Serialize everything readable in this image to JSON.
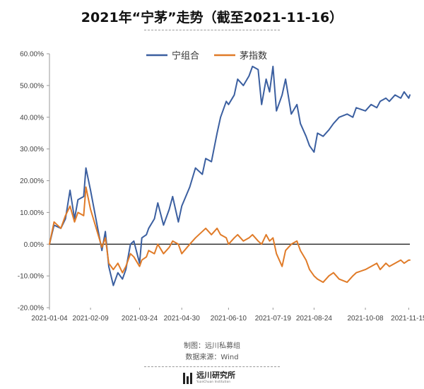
{
  "header": {
    "title": "2021年“宁茅”走势（截至2021-11-16）"
  },
  "footer": {
    "credit": "制图：远川私募组",
    "source": "数据来源：Wind",
    "logo_text": "远川研究所",
    "logo_subtext": "YuanChuan Institution"
  },
  "chart_data": {
    "type": "line",
    "title": "2021年“宁茅”走势（截至2021-11-16）",
    "xlabel": "",
    "ylabel": "",
    "ylim": [
      -20,
      60
    ],
    "yticks": [
      -20,
      -10,
      0,
      10,
      20,
      30,
      40,
      50,
      60
    ],
    "ytick_labels": [
      "-20.00%",
      "-10.00%",
      "0.00%",
      "10.00%",
      "20.00%",
      "30.00%",
      "40.00%",
      "50.00%",
      "60.00%"
    ],
    "xticks": [
      "2021-01-04",
      "2021-02-09",
      "2021-03-24",
      "2021-04-30",
      "2021-06-10",
      "2021-07-19",
      "2021-08-24",
      "2021-10-08",
      "2021-11-15"
    ],
    "x_range": [
      "2021-01-04",
      "2021-11-16"
    ],
    "grid": false,
    "legend": "top-center",
    "series": [
      {
        "name": "宁组合",
        "color": "#3b5fa0",
        "x": [
          "2021-01-04",
          "2021-01-08",
          "2021-01-14",
          "2021-01-18",
          "2021-01-22",
          "2021-01-26",
          "2021-01-29",
          "2021-02-03",
          "2021-02-05",
          "2021-02-09",
          "2021-02-19",
          "2021-02-22",
          "2021-02-25",
          "2021-03-01",
          "2021-03-05",
          "2021-03-09",
          "2021-03-12",
          "2021-03-16",
          "2021-03-19",
          "2021-03-24",
          "2021-03-26",
          "2021-03-30",
          "2021-04-01",
          "2021-04-06",
          "2021-04-09",
          "2021-04-14",
          "2021-04-19",
          "2021-04-22",
          "2021-04-27",
          "2021-04-30",
          "2021-05-07",
          "2021-05-12",
          "2021-05-18",
          "2021-05-21",
          "2021-05-26",
          "2021-05-31",
          "2021-06-03",
          "2021-06-08",
          "2021-06-10",
          "2021-06-15",
          "2021-06-18",
          "2021-06-23",
          "2021-06-28",
          "2021-07-01",
          "2021-07-06",
          "2021-07-09",
          "2021-07-13",
          "2021-07-16",
          "2021-07-19",
          "2021-07-22",
          "2021-07-27",
          "2021-07-30",
          "2021-08-04",
          "2021-08-09",
          "2021-08-12",
          "2021-08-17",
          "2021-08-20",
          "2021-08-24",
          "2021-08-27",
          "2021-09-01",
          "2021-09-06",
          "2021-09-10",
          "2021-09-15",
          "2021-09-22",
          "2021-09-27",
          "2021-09-30",
          "2021-10-08",
          "2021-10-13",
          "2021-10-18",
          "2021-10-21",
          "2021-10-26",
          "2021-10-29",
          "2021-11-03",
          "2021-11-08",
          "2021-11-11",
          "2021-11-15",
          "2021-11-16"
        ],
        "values": [
          0,
          6,
          5,
          8,
          17,
          8,
          14,
          15,
          24,
          17,
          -2,
          4,
          -7,
          -13,
          -9,
          -11,
          -8,
          0,
          1,
          -6,
          2,
          3,
          5,
          8,
          13,
          6,
          11,
          15,
          7,
          12,
          18,
          24,
          22,
          27,
          26,
          35,
          40,
          45,
          44,
          47,
          52,
          50,
          53,
          56,
          55,
          44,
          52,
          48,
          56,
          42,
          47,
          52,
          41,
          44,
          38,
          34,
          31,
          29,
          35,
          34,
          36,
          38,
          40,
          41,
          40,
          43,
          42,
          44,
          43,
          45,
          46,
          45,
          47,
          46,
          48,
          46,
          47
        ]
      },
      {
        "name": "茅指数",
        "color": "#e07b28",
        "x": [
          "2021-01-04",
          "2021-01-08",
          "2021-01-14",
          "2021-01-18",
          "2021-01-22",
          "2021-01-26",
          "2021-01-29",
          "2021-02-03",
          "2021-02-05",
          "2021-02-09",
          "2021-02-19",
          "2021-02-22",
          "2021-02-25",
          "2021-03-01",
          "2021-03-05",
          "2021-03-09",
          "2021-03-12",
          "2021-03-16",
          "2021-03-19",
          "2021-03-24",
          "2021-03-26",
          "2021-03-30",
          "2021-04-01",
          "2021-04-06",
          "2021-04-09",
          "2021-04-14",
          "2021-04-19",
          "2021-04-22",
          "2021-04-27",
          "2021-04-30",
          "2021-05-07",
          "2021-05-12",
          "2021-05-18",
          "2021-05-21",
          "2021-05-26",
          "2021-05-31",
          "2021-06-03",
          "2021-06-08",
          "2021-06-10",
          "2021-06-15",
          "2021-06-18",
          "2021-06-23",
          "2021-06-28",
          "2021-07-01",
          "2021-07-06",
          "2021-07-09",
          "2021-07-13",
          "2021-07-16",
          "2021-07-19",
          "2021-07-22",
          "2021-07-27",
          "2021-07-30",
          "2021-08-04",
          "2021-08-09",
          "2021-08-12",
          "2021-08-17",
          "2021-08-20",
          "2021-08-24",
          "2021-08-27",
          "2021-09-01",
          "2021-09-06",
          "2021-09-10",
          "2021-09-15",
          "2021-09-22",
          "2021-09-27",
          "2021-09-30",
          "2021-10-08",
          "2021-10-13",
          "2021-10-18",
          "2021-10-21",
          "2021-10-26",
          "2021-10-29",
          "2021-11-03",
          "2021-11-08",
          "2021-11-11",
          "2021-11-15",
          "2021-11-16"
        ],
        "values": [
          0,
          7,
          5,
          9,
          12,
          7,
          10,
          9,
          18,
          11,
          -1,
          2,
          -6,
          -8,
          -6,
          -9,
          -7,
          -3,
          -4,
          -7,
          -5,
          -4,
          -2,
          -3,
          0,
          -3,
          -1,
          1,
          0,
          -3,
          0,
          2,
          4,
          5,
          3,
          5,
          3,
          2,
          0,
          2,
          3,
          1,
          2,
          3,
          1,
          0,
          3,
          1,
          2,
          -3,
          -7,
          -2,
          0,
          1,
          -2,
          -5,
          -8,
          -10,
          -11,
          -12,
          -10,
          -9,
          -11,
          -12,
          -10,
          -9,
          -8,
          -7,
          -6,
          -8,
          -6,
          -7,
          -6,
          -5,
          -6,
          -5,
          -5
        ]
      }
    ]
  }
}
